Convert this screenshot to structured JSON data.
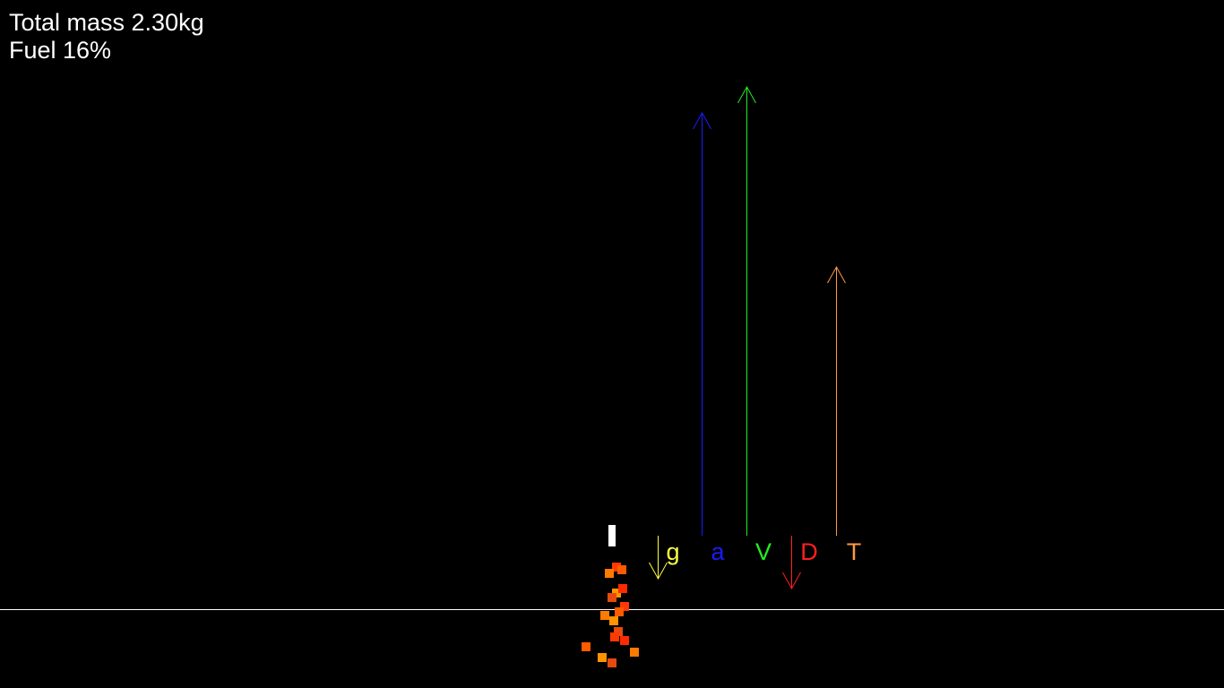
{
  "hud": {
    "mass_text": "Total mass 2.30kg",
    "fuel_text": "Fuel 16%"
  },
  "colors": {
    "background": "#000000",
    "ground": "#ffffff",
    "rocket": "#ffffff",
    "exhaust": [
      "#ff3a00",
      "#ff5a00",
      "#ff7a00",
      "#ff9400",
      "#e64a10",
      "#ff2a00"
    ]
  },
  "vectors": [
    {
      "id": "gravity",
      "label": "g",
      "color": "#ffff40",
      "direction": "down",
      "magnitude": 48
    },
    {
      "id": "acceleration",
      "label": "a",
      "color": "#1a1aff",
      "direction": "up",
      "magnitude": 472
    },
    {
      "id": "velocity",
      "label": "V",
      "color": "#22ee22",
      "direction": "up",
      "magnitude": 501
    },
    {
      "id": "drag",
      "label": "D",
      "color": "#ff2020",
      "direction": "down",
      "magnitude": 59
    },
    {
      "id": "thrust",
      "label": "T",
      "color": "#ff9a40",
      "direction": "up",
      "magnitude": 300
    }
  ]
}
